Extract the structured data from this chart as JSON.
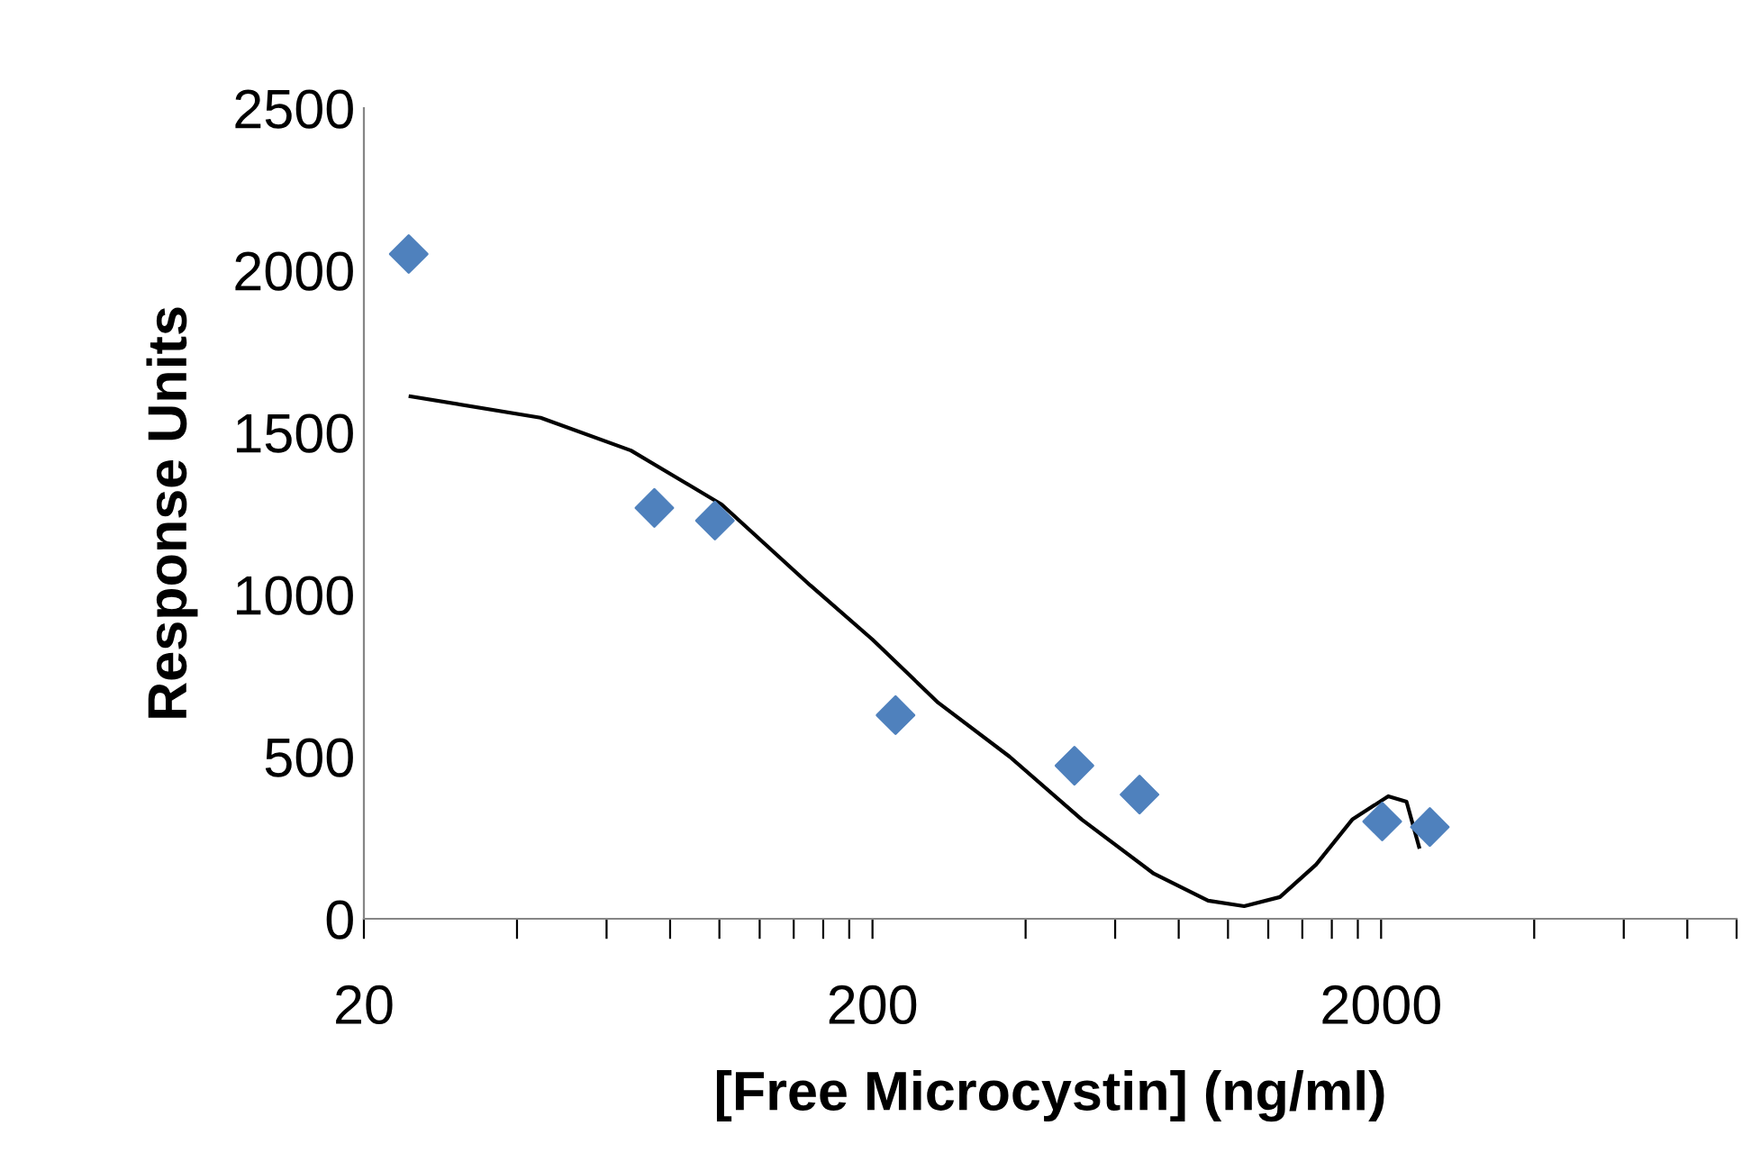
{
  "chart_data": {
    "type": "scatter",
    "xlabel": "[Free Microcystin] (ng/ml)",
    "ylabel": "Response Units",
    "log": "x",
    "xlim": [
      20,
      10000
    ],
    "ylim": [
      0,
      2500
    ],
    "yticks": [
      0,
      500,
      1000,
      1500,
      2000,
      2500
    ],
    "xticks": [
      20,
      {
        "value": 40,
        "label": null
      },
      {
        "value": 60,
        "label": null
      },
      {
        "value": 80,
        "label": null
      },
      {
        "value": 100,
        "label": null
      },
      {
        "value": 120,
        "label": null
      },
      {
        "value": 140,
        "label": null
      },
      {
        "value": 160,
        "label": null
      },
      {
        "value": 180,
        "label": null
      },
      200,
      {
        "value": 400,
        "label": null
      },
      {
        "value": 600,
        "label": null
      },
      {
        "value": 800,
        "label": null
      },
      {
        "value": 1000,
        "label": null
      },
      {
        "value": 1200,
        "label": null
      },
      {
        "value": 1400,
        "label": null
      },
      {
        "value": 1600,
        "label": null
      },
      {
        "value": 1800,
        "label": null
      },
      2000,
      {
        "value": 4000,
        "label": null
      },
      {
        "value": 6000,
        "label": null
      },
      {
        "value": 8000,
        "label": null
      },
      {
        "value": 10000,
        "label": null
      }
    ],
    "grid": false,
    "legend": false,
    "series": [
      {
        "marker": "diamond",
        "color": "#4f81bd",
        "x": [
          24.5,
          74.5,
          98,
          222,
          499,
          670,
          2010,
          2494
        ],
        "values": [
          2050,
          1267,
          1228,
          628,
          472,
          383,
          300,
          283
        ]
      },
      {
        "type": "line",
        "marker": "none",
        "line_style": "solid",
        "color": "#000000",
        "x": [
          24.7,
          44.5,
          67,
          101,
          151,
          200,
          269,
          372,
          516,
          715,
          914,
          1076,
          1265,
          1490,
          1755,
          2066,
          2244,
          2375
        ],
        "values": [
          1611,
          1545,
          1444,
          1278,
          1028,
          861,
          667,
          500,
          306,
          139,
          56,
          39,
          67,
          167,
          306,
          378,
          361,
          222
        ]
      }
    ]
  }
}
